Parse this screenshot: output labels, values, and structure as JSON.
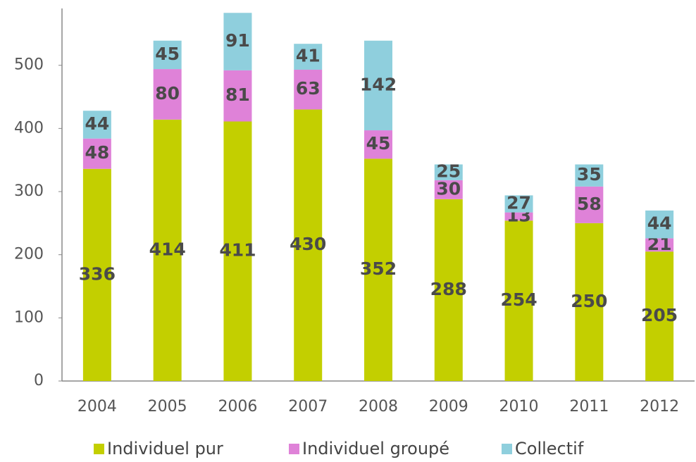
{
  "chart_data": {
    "type": "stacked_bar",
    "categories": [
      "2004",
      "2005",
      "2006",
      "2007",
      "2008",
      "2009",
      "2010",
      "2011",
      "2012"
    ],
    "series": [
      {
        "name": "Individuel pur",
        "color": "#c3cf00",
        "values": [
          336,
          414,
          411,
          430,
          352,
          288,
          254,
          250,
          205
        ]
      },
      {
        "name": "Individuel groupé",
        "color": "#df82d8",
        "values": [
          48,
          80,
          81,
          63,
          45,
          30,
          13,
          58,
          21
        ]
      },
      {
        "name": "Collectif",
        "color": "#8fcfdd",
        "values": [
          44,
          45,
          91,
          41,
          142,
          25,
          27,
          35,
          44
        ]
      }
    ],
    "ylim": [
      0,
      590
    ],
    "yticks": [
      0,
      100,
      200,
      300,
      400,
      500
    ],
    "grid": false,
    "legend": "bottom"
  }
}
